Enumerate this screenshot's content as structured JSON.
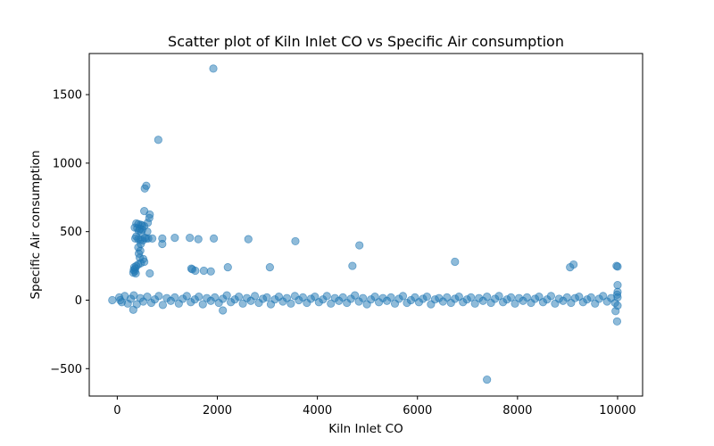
{
  "chart_data": {
    "type": "scatter",
    "title": "Scatter plot of Kiln Inlet CO vs Specific Air consumption",
    "xlabel": "Kiln Inlet CO",
    "ylabel": "Specific Air consumption",
    "xlim": [
      -560,
      10500
    ],
    "ylim": [
      -700,
      1800
    ],
    "grid": false,
    "legend": "none",
    "marker_color": "#1f77b4",
    "marker_alpha": 0.5,
    "x_ticks": [
      0,
      2000,
      4000,
      6000,
      8000,
      10000
    ],
    "x_tick_labels": [
      "0",
      "2000",
      "4000",
      "6000",
      "8000",
      "10000"
    ],
    "y_ticks": [
      -500,
      0,
      500,
      1000,
      1500
    ],
    "y_tick_labels": [
      "−500",
      "0",
      "500",
      "1000",
      "1500"
    ],
    "series": [
      {
        "values_description_points": [
          [
            1920,
            1690
          ],
          [
            820,
            1170
          ],
          [
            580,
            835
          ],
          [
            550,
            815
          ],
          [
            540,
            650
          ],
          [
            650,
            625
          ],
          [
            640,
            600
          ],
          [
            610,
            565
          ],
          [
            380,
            560
          ],
          [
            420,
            555
          ],
          [
            470,
            550
          ],
          [
            500,
            545
          ],
          [
            540,
            540
          ],
          [
            350,
            530
          ],
          [
            400,
            525
          ],
          [
            450,
            520
          ],
          [
            500,
            515
          ],
          [
            430,
            505
          ],
          [
            480,
            495
          ],
          [
            600,
            500
          ],
          [
            380,
            465
          ],
          [
            360,
            450
          ],
          [
            420,
            445
          ],
          [
            460,
            440
          ],
          [
            510,
            435
          ],
          [
            550,
            455
          ],
          [
            580,
            450
          ],
          [
            620,
            450
          ],
          [
            700,
            450
          ],
          [
            900,
            450
          ],
          [
            1150,
            455
          ],
          [
            1450,
            455
          ],
          [
            1620,
            445
          ],
          [
            1930,
            450
          ],
          [
            2620,
            445
          ],
          [
            3560,
            430
          ],
          [
            4840,
            400
          ],
          [
            900,
            410
          ],
          [
            470,
            410
          ],
          [
            420,
            385
          ],
          [
            460,
            360
          ],
          [
            430,
            340
          ],
          [
            450,
            310
          ],
          [
            520,
            300
          ],
          [
            540,
            280
          ],
          [
            470,
            270
          ],
          [
            420,
            260
          ],
          [
            380,
            250
          ],
          [
            340,
            240
          ],
          [
            360,
            230
          ],
          [
            330,
            220
          ],
          [
            350,
            210
          ],
          [
            320,
            200
          ],
          [
            370,
            195
          ],
          [
            650,
            195
          ],
          [
            1480,
            230
          ],
          [
            1500,
            225
          ],
          [
            1560,
            215
          ],
          [
            1730,
            215
          ],
          [
            1870,
            210
          ],
          [
            2210,
            240
          ],
          [
            3050,
            240
          ],
          [
            4700,
            250
          ],
          [
            6750,
            280
          ],
          [
            9050,
            240
          ],
          [
            9120,
            260
          ],
          [
            9980,
            250
          ],
          [
            10000,
            245
          ],
          [
            10000,
            110
          ],
          [
            10000,
            60
          ],
          [
            9990,
            40
          ],
          [
            10000,
            -40
          ],
          [
            9960,
            -80
          ],
          [
            9990,
            -155
          ],
          [
            2110,
            -75
          ],
          [
            7390,
            -580
          ],
          [
            320,
            -70
          ],
          [
            60,
            0
          ],
          [
            -100,
            0
          ],
          [
            40,
            20
          ],
          [
            90,
            -15
          ],
          [
            150,
            30
          ],
          [
            210,
            -25
          ],
          [
            270,
            10
          ],
          [
            330,
            35
          ],
          [
            390,
            -30
          ],
          [
            460,
            15
          ],
          [
            520,
            -10
          ],
          [
            600,
            25
          ],
          [
            680,
            -20
          ],
          [
            750,
            5
          ],
          [
            830,
            30
          ],
          [
            910,
            -35
          ],
          [
            990,
            15
          ],
          [
            1070,
            -5
          ],
          [
            1150,
            20
          ],
          [
            1230,
            -25
          ],
          [
            1310,
            10
          ],
          [
            1390,
            30
          ],
          [
            1470,
            -15
          ],
          [
            1550,
            5
          ],
          [
            1630,
            25
          ],
          [
            1710,
            -30
          ],
          [
            1790,
            15
          ],
          [
            1870,
            -5
          ],
          [
            1950,
            20
          ],
          [
            2030,
            -20
          ],
          [
            2110,
            10
          ],
          [
            2190,
            35
          ],
          [
            2270,
            -15
          ],
          [
            2350,
            5
          ],
          [
            2430,
            25
          ],
          [
            2510,
            -25
          ],
          [
            2590,
            15
          ],
          [
            2670,
            -5
          ],
          [
            2750,
            30
          ],
          [
            2830,
            -20
          ],
          [
            2910,
            10
          ],
          [
            2990,
            20
          ],
          [
            3070,
            -30
          ],
          [
            3150,
            5
          ],
          [
            3230,
            25
          ],
          [
            3310,
            -10
          ],
          [
            3390,
            15
          ],
          [
            3470,
            -25
          ],
          [
            3550,
            30
          ],
          [
            3630,
            0
          ],
          [
            3710,
            20
          ],
          [
            3790,
            -20
          ],
          [
            3870,
            10
          ],
          [
            3950,
            25
          ],
          [
            4030,
            -15
          ],
          [
            4110,
            5
          ],
          [
            4190,
            30
          ],
          [
            4270,
            -25
          ],
          [
            4350,
            15
          ],
          [
            4430,
            -5
          ],
          [
            4510,
            20
          ],
          [
            4590,
            -20
          ],
          [
            4670,
            10
          ],
          [
            4750,
            35
          ],
          [
            4830,
            -10
          ],
          [
            4910,
            15
          ],
          [
            4990,
            -30
          ],
          [
            5070,
            5
          ],
          [
            5150,
            25
          ],
          [
            5230,
            -15
          ],
          [
            5310,
            15
          ],
          [
            5390,
            -5
          ],
          [
            5470,
            20
          ],
          [
            5550,
            -25
          ],
          [
            5630,
            10
          ],
          [
            5710,
            30
          ],
          [
            5790,
            -20
          ],
          [
            5870,
            0
          ],
          [
            5950,
            20
          ],
          [
            6030,
            -15
          ],
          [
            6110,
            10
          ],
          [
            6190,
            25
          ],
          [
            6270,
            -30
          ],
          [
            6350,
            5
          ],
          [
            6430,
            15
          ],
          [
            6510,
            -10
          ],
          [
            6590,
            20
          ],
          [
            6670,
            -20
          ],
          [
            6750,
            10
          ],
          [
            6830,
            25
          ],
          [
            6910,
            -15
          ],
          [
            6990,
            5
          ],
          [
            7070,
            20
          ],
          [
            7150,
            -25
          ],
          [
            7230,
            15
          ],
          [
            7310,
            -5
          ],
          [
            7390,
            25
          ],
          [
            7470,
            -20
          ],
          [
            7550,
            10
          ],
          [
            7630,
            30
          ],
          [
            7710,
            -15
          ],
          [
            7790,
            5
          ],
          [
            7870,
            20
          ],
          [
            7950,
            -25
          ],
          [
            8030,
            15
          ],
          [
            8110,
            -5
          ],
          [
            8190,
            20
          ],
          [
            8270,
            -20
          ],
          [
            8350,
            10
          ],
          [
            8430,
            25
          ],
          [
            8510,
            -15
          ],
          [
            8590,
            5
          ],
          [
            8670,
            30
          ],
          [
            8750,
            -25
          ],
          [
            8830,
            10
          ],
          [
            8910,
            -5
          ],
          [
            8990,
            20
          ],
          [
            9070,
            -20
          ],
          [
            9150,
            15
          ],
          [
            9230,
            25
          ],
          [
            9310,
            -15
          ],
          [
            9390,
            5
          ],
          [
            9470,
            20
          ],
          [
            9550,
            -25
          ],
          [
            9630,
            10
          ],
          [
            9710,
            30
          ],
          [
            9790,
            -10
          ],
          [
            9870,
            15
          ],
          [
            9950,
            -20
          ],
          [
            10000,
            20
          ]
        ]
      }
    ]
  }
}
